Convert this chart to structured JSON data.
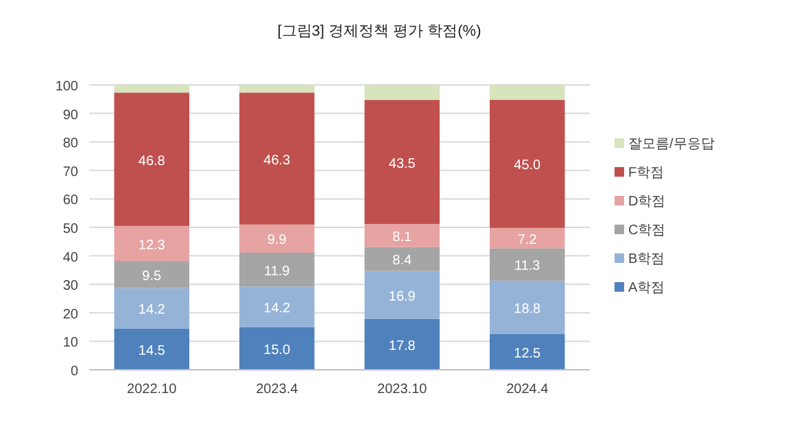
{
  "chart_data": {
    "type": "bar",
    "title": "[그림3] 경제정책 평가 학점(%)",
    "categories": [
      "2022.10",
      "2023.4",
      "2023.10",
      "2024.4"
    ],
    "stacked": true,
    "ylim": [
      0,
      100
    ],
    "yticks": [
      0,
      10,
      20,
      30,
      40,
      50,
      60,
      70,
      80,
      90,
      100
    ],
    "grid": "y",
    "legend": "right",
    "series": [
      {
        "name": "A학점",
        "color": "#4f81bd",
        "values": [
          14.5,
          15.0,
          17.8,
          12.5
        ],
        "value_labels": [
          "14.5",
          "15.0",
          "17.8",
          "12.5"
        ]
      },
      {
        "name": "B학점",
        "color": "#95b3d7",
        "values": [
          14.2,
          14.2,
          16.9,
          18.8
        ],
        "value_labels": [
          "14.2",
          "14.2",
          "16.9",
          "18.8"
        ]
      },
      {
        "name": "C학점",
        "color": "#a5a5a5",
        "values": [
          9.5,
          11.9,
          8.4,
          11.3
        ],
        "value_labels": [
          "9.5",
          "11.9",
          "8.4",
          "11.3"
        ]
      },
      {
        "name": "D학점",
        "color": "#e6a3a2",
        "values": [
          12.3,
          9.9,
          8.1,
          7.2
        ],
        "value_labels": [
          "12.3",
          "9.9",
          "8.1",
          "7.2"
        ]
      },
      {
        "name": "F학점",
        "color": "#c0504d",
        "values": [
          46.8,
          46.3,
          43.5,
          45.0
        ],
        "value_labels": [
          "46.8",
          "46.3",
          "43.5",
          "45.0"
        ]
      },
      {
        "name": "잘모름/무응답",
        "color": "#d7e4bc",
        "values": [
          2.7,
          2.7,
          5.3,
          5.2
        ]
      }
    ]
  }
}
